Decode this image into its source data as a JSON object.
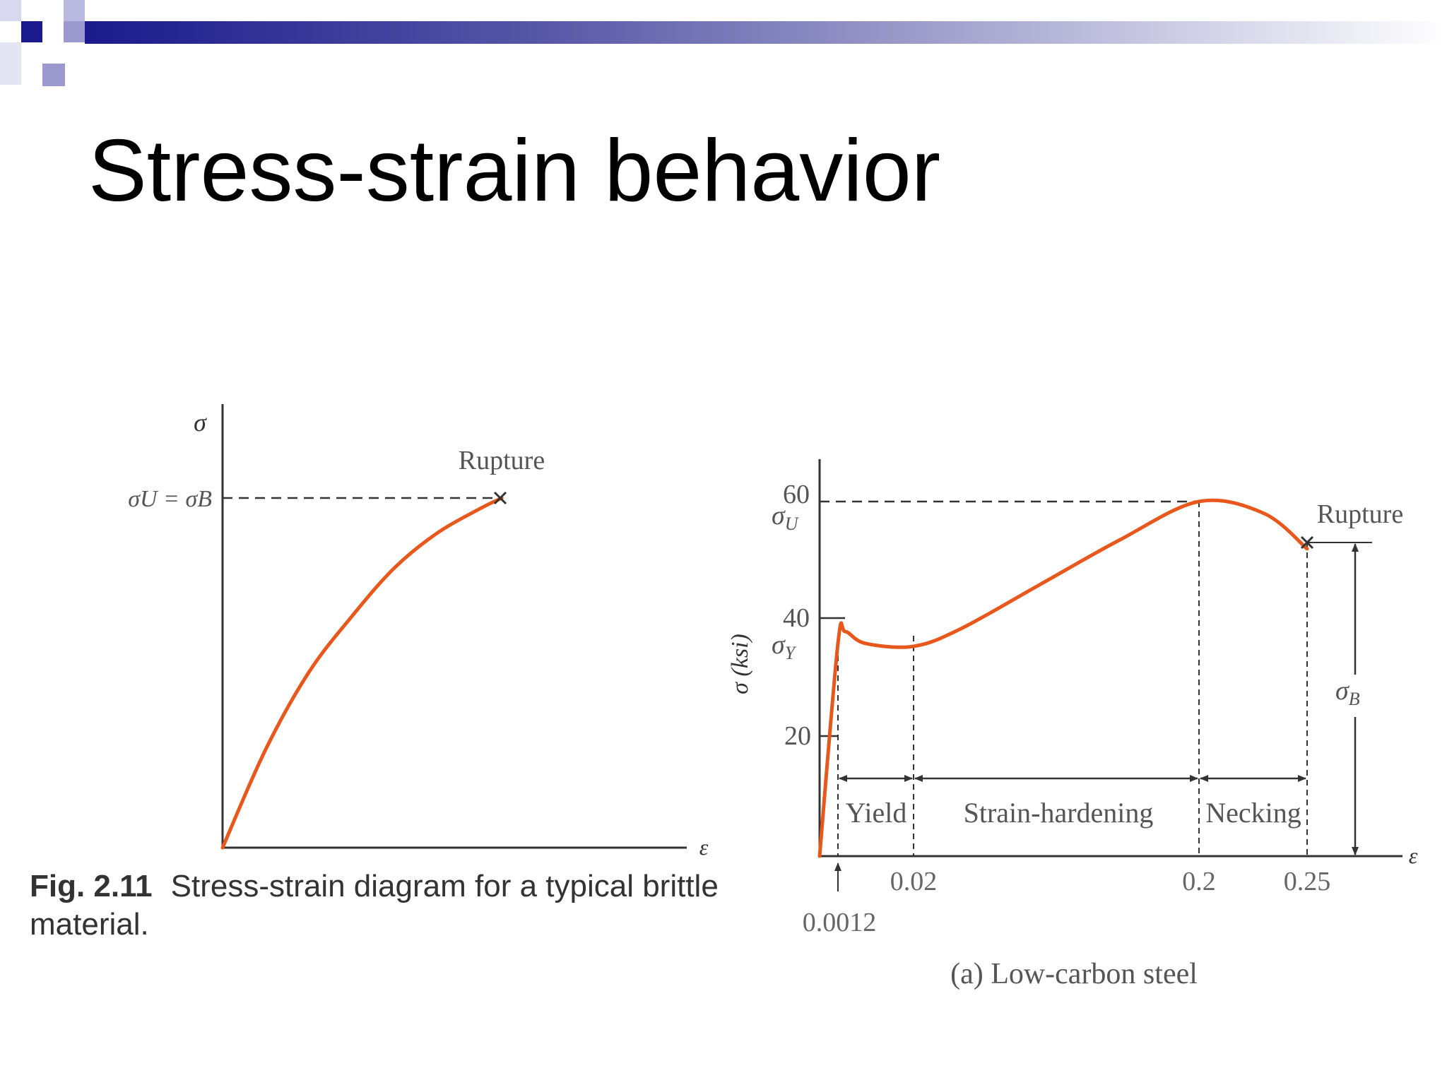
{
  "slide": {
    "title": "Stress-strain behavior",
    "colors": {
      "header_dark": "#1a1a8c",
      "header_mid": "#6a6ac8",
      "header_light": "#c8c8e8",
      "curve": "#e8581c"
    }
  },
  "figure_caption": {
    "label": "Fig. 2.11",
    "text": "Stress-strain diagram for a typical brittle material."
  },
  "chart_data": [
    {
      "type": "line",
      "x_axis_symbol": "ε",
      "y_axis_symbol": "σ",
      "y_reference_label": "σU = σB",
      "point_label": "Rupture",
      "series": [
        {
          "values": [
            [
              0,
              0
            ],
            [
              0.1,
              0.28
            ],
            [
              0.2,
              0.5
            ],
            [
              0.3,
              0.66
            ],
            [
              0.4,
              0.8
            ],
            [
              0.5,
              0.9
            ],
            [
              0.6,
              0.97
            ],
            [
              0.65,
              1.0
            ]
          ]
        }
      ],
      "rupture_point": [
        0.65,
        1.0
      ],
      "grid": false
    },
    {
      "type": "line",
      "ylabel": "σ (ksi)",
      "xlabel": "ε",
      "y_ticks": [
        "20",
        "40",
        "60"
      ],
      "y_symbols": {
        "sigma_U": "σU",
        "sigma_Y": "σY",
        "sigma_B": "σB"
      },
      "x_tick_labels": [
        "0.0012",
        "0.02",
        "0.2",
        "0.25"
      ],
      "regions": [
        "Yield",
        "Strain-hardening",
        "Necking"
      ],
      "point_label": "Rupture",
      "subtitle": "(a) Low-carbon steel",
      "ylim": [
        0,
        65
      ],
      "xlim": [
        0,
        0.28
      ],
      "series": [
        {
          "values": [
            [
              0,
              0
            ],
            [
              0.0012,
              36
            ],
            [
              0.003,
              38
            ],
            [
              0.008,
              36
            ],
            [
              0.02,
              35.5
            ],
            [
              0.05,
              38.5
            ],
            [
              0.1,
              46
            ],
            [
              0.15,
              53.5
            ],
            [
              0.2,
              60
            ],
            [
              0.23,
              58
            ],
            [
              0.25,
              52
            ]
          ]
        }
      ],
      "values": {
        "sigma_U": 60,
        "sigma_Y": 36,
        "sigma_B": 52,
        "yield_strain": 0.0012,
        "hardening_start": 0.02,
        "necking_start": 0.2,
        "rupture_strain": 0.25
      },
      "grid": false
    }
  ]
}
